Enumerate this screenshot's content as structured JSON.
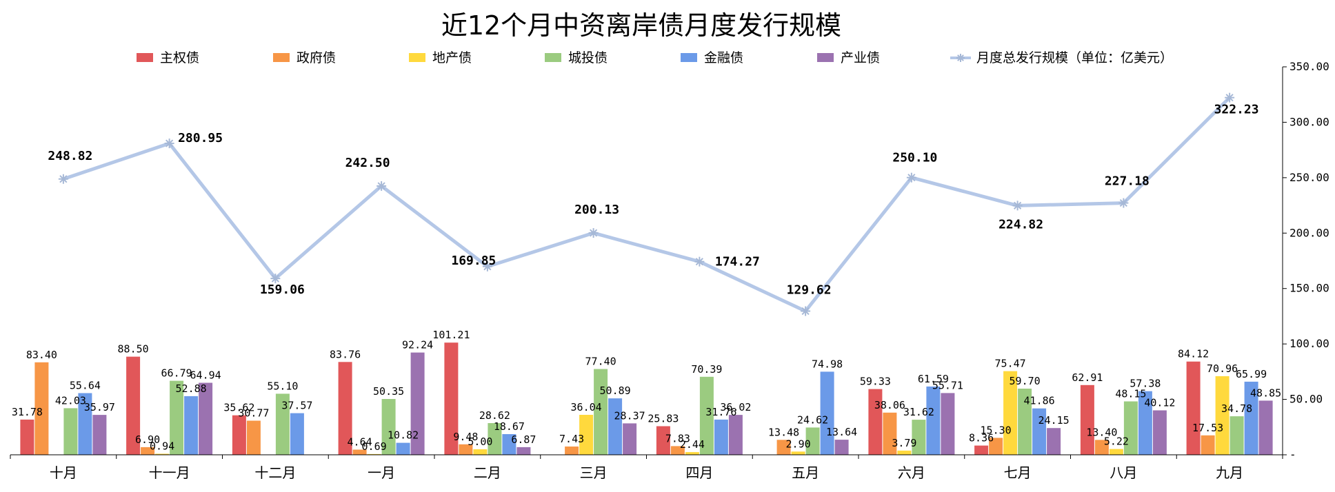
{
  "chart_data": {
    "type": "bar",
    "title": "近12个月中资离岸债月度发行规模",
    "categories": [
      "十月",
      "十一月",
      "十二月",
      "一月",
      "二月",
      "三月",
      "四月",
      "五月",
      "六月",
      "七月",
      "八月",
      "九月"
    ],
    "series": [
      {
        "name": "主权债",
        "color": "#E15759",
        "values": [
          31.78,
          88.5,
          35.62,
          83.76,
          101.21,
          null,
          25.83,
          null,
          59.33,
          8.36,
          62.91,
          84.12
        ]
      },
      {
        "name": "政府债",
        "color": "#F79646",
        "values": [
          83.4,
          6.9,
          30.77,
          4.64,
          9.48,
          7.43,
          7.83,
          13.48,
          38.06,
          15.3,
          13.4,
          17.53
        ]
      },
      {
        "name": "地产债",
        "color": "#FFD93D",
        "values": [
          null,
          0.94,
          null,
          0.69,
          5.0,
          36.04,
          2.44,
          2.9,
          3.79,
          75.47,
          5.22,
          70.96
        ]
      },
      {
        "name": "城投债",
        "color": "#9BCB80",
        "values": [
          42.03,
          66.79,
          55.1,
          50.35,
          28.62,
          77.4,
          70.39,
          24.62,
          31.62,
          59.7,
          48.15,
          34.78
        ]
      },
      {
        "name": "金融债",
        "color": "#6B9AE8",
        "values": [
          55.64,
          52.88,
          37.57,
          10.82,
          18.67,
          50.89,
          31.76,
          74.98,
          61.59,
          41.86,
          57.38,
          65.99
        ]
      },
      {
        "name": "产业债",
        "color": "#9B72B0",
        "values": [
          35.97,
          64.94,
          null,
          92.24,
          6.87,
          28.37,
          36.02,
          13.64,
          55.71,
          24.15,
          40.12,
          48.85
        ]
      }
    ],
    "line_series": {
      "name": "月度总发行规模（单位：亿美元）",
      "color": "#B4C7E7",
      "values": [
        248.82,
        280.95,
        159.06,
        242.5,
        169.85,
        200.13,
        174.27,
        129.62,
        250.1,
        224.82,
        227.18,
        322.23
      ]
    },
    "y_axis": {
      "side": "right",
      "ylim": [
        0,
        350
      ],
      "tick_step": 50,
      "tick_labels": [
        "-",
        "50.00",
        "100.00",
        "150.00",
        "200.00",
        "250.00",
        "300.00",
        "350.00"
      ]
    },
    "legend": "top",
    "grid": false
  }
}
